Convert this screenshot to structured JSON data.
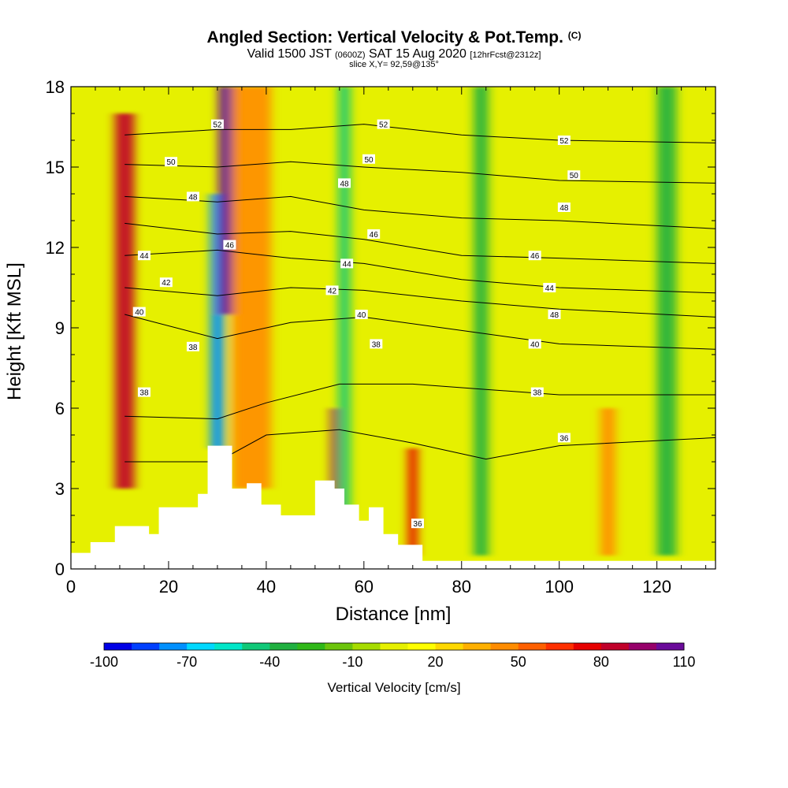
{
  "title": {
    "main": "Angled Section: Vertical Velocity & Pot.Temp.",
    "main_unit": "(C)",
    "valid_a": "Valid 1500 JST",
    "valid_b": "(0600Z)",
    "valid_c": "SAT 15 Aug 2020",
    "valid_d": "[12hrFcst@2312z]",
    "slice": "slice X,Y= 92,59@135°"
  },
  "chart_data": {
    "type": "heatmap",
    "xlabel": "Distance [nm]",
    "ylabel": "Height [Kft MSL]",
    "xlim": [
      0,
      132
    ],
    "ylim": [
      0,
      18
    ],
    "x_ticks": [
      0,
      20,
      40,
      60,
      80,
      100,
      120
    ],
    "y_ticks": [
      0,
      3,
      6,
      9,
      12,
      15,
      18
    ],
    "colorbar": {
      "title": "Vertical Velocity [cm/s]",
      "min": -100,
      "max": 110,
      "tick_labels": [
        "-100",
        "-70",
        "-40",
        "-10",
        "20",
        "50",
        "80",
        "110"
      ],
      "colors": [
        "#0000e6",
        "#0040ff",
        "#0090ff",
        "#00d8ff",
        "#00e6c8",
        "#10c878",
        "#20b040",
        "#30b818",
        "#6cc40c",
        "#a6dc00",
        "#e6f000",
        "#ffff00",
        "#ffd800",
        "#ffb000",
        "#ff8c00",
        "#ff6000",
        "#ff3000",
        "#e60000",
        "#c0002a",
        "#96006a",
        "#6a0a9a"
      ]
    },
    "terrain": [
      [
        0,
        0.6
      ],
      [
        4,
        1.0
      ],
      [
        9,
        1.6
      ],
      [
        14,
        1.6
      ],
      [
        16,
        1.3
      ],
      [
        18,
        2.3
      ],
      [
        23,
        2.3
      ],
      [
        26,
        2.8
      ],
      [
        28,
        4.6
      ],
      [
        31,
        4.6
      ],
      [
        33,
        3.0
      ],
      [
        36,
        3.2
      ],
      [
        39,
        2.4
      ],
      [
        43,
        2.0
      ],
      [
        47,
        2.0
      ],
      [
        50,
        3.3
      ],
      [
        54,
        3.0
      ],
      [
        56,
        2.4
      ],
      [
        59,
        1.8
      ],
      [
        61,
        2.3
      ],
      [
        64,
        1.3
      ],
      [
        67,
        0.9
      ],
      [
        72,
        0.3
      ],
      [
        132,
        0.3
      ]
    ],
    "vv_bands": [
      {
        "x": 11,
        "w": 2.0,
        "v": 80,
        "y0": 3.0,
        "y1": 17
      },
      {
        "x": 30,
        "w": 1.5,
        "v": -80,
        "y0": 4.5,
        "y1": 14
      },
      {
        "x": 32,
        "w": 1.8,
        "v": 100,
        "y0": 9.5,
        "y1": 18
      },
      {
        "x": 37,
        "w": 4.0,
        "v": 40,
        "y0": 3.0,
        "y1": 18
      },
      {
        "x": 54,
        "w": 0.8,
        "v": 90,
        "y0": 2.0,
        "y1": 6
      },
      {
        "x": 56,
        "w": 1.2,
        "v": -50,
        "y0": 2.0,
        "y1": 18
      },
      {
        "x": 70,
        "w": 1.0,
        "v": 70,
        "y0": 0.5,
        "y1": 4.5
      },
      {
        "x": 84,
        "w": 1.5,
        "v": -40,
        "y0": 0.5,
        "y1": 18
      },
      {
        "x": 110,
        "w": 1.5,
        "v": 40,
        "y0": 0.5,
        "y1": 6
      },
      {
        "x": 122,
        "w": 2.0,
        "v": -40,
        "y0": 0.5,
        "y1": 18
      }
    ],
    "isentropes": [
      {
        "label": "36",
        "pts": [
          [
            11,
            4.0
          ],
          [
            30,
            4.0
          ],
          [
            40,
            5.0
          ],
          [
            55,
            5.2
          ],
          [
            70,
            4.7
          ],
          [
            85,
            4.1
          ],
          [
            100,
            4.6
          ],
          [
            132,
            4.9
          ]
        ]
      },
      {
        "label": "38",
        "pts": [
          [
            11,
            5.7
          ],
          [
            30,
            5.6
          ],
          [
            40,
            6.2
          ],
          [
            55,
            6.9
          ],
          [
            70,
            6.9
          ],
          [
            85,
            6.7
          ],
          [
            100,
            6.5
          ],
          [
            132,
            6.5
          ]
        ]
      },
      {
        "label": "40",
        "pts": [
          [
            11,
            9.5
          ],
          [
            30,
            8.6
          ],
          [
            45,
            9.2
          ],
          [
            60,
            9.4
          ],
          [
            80,
            8.9
          ],
          [
            100,
            8.4
          ],
          [
            132,
            8.2
          ]
        ]
      },
      {
        "label": "42",
        "pts": [
          [
            11,
            10.5
          ],
          [
            30,
            10.2
          ],
          [
            45,
            10.5
          ],
          [
            60,
            10.4
          ],
          [
            80,
            10.0
          ],
          [
            100,
            9.7
          ],
          [
            132,
            9.4
          ]
        ]
      },
      {
        "label": "44",
        "pts": [
          [
            11,
            11.7
          ],
          [
            30,
            11.9
          ],
          [
            45,
            11.6
          ],
          [
            60,
            11.4
          ],
          [
            80,
            10.8
          ],
          [
            100,
            10.5
          ],
          [
            132,
            10.3
          ]
        ]
      },
      {
        "label": "46",
        "pts": [
          [
            11,
            12.9
          ],
          [
            30,
            12.5
          ],
          [
            45,
            12.6
          ],
          [
            60,
            12.3
          ],
          [
            80,
            11.7
          ],
          [
            100,
            11.6
          ],
          [
            132,
            11.4
          ]
        ]
      },
      {
        "label": "48",
        "pts": [
          [
            11,
            13.9
          ],
          [
            30,
            13.7
          ],
          [
            45,
            13.9
          ],
          [
            60,
            13.4
          ],
          [
            80,
            13.1
          ],
          [
            100,
            13.0
          ],
          [
            132,
            12.7
          ]
        ]
      },
      {
        "label": "50",
        "pts": [
          [
            11,
            15.1
          ],
          [
            30,
            15.0
          ],
          [
            45,
            15.2
          ],
          [
            60,
            15.0
          ],
          [
            80,
            14.8
          ],
          [
            100,
            14.5
          ],
          [
            132,
            14.4
          ]
        ]
      },
      {
        "label": "52",
        "pts": [
          [
            11,
            16.2
          ],
          [
            30,
            16.4
          ],
          [
            45,
            16.4
          ],
          [
            60,
            16.6
          ],
          [
            80,
            16.2
          ],
          [
            100,
            16.0
          ],
          [
            132,
            15.9
          ]
        ]
      }
    ],
    "contour_labels": [
      {
        "text": "52",
        "x": 30,
        "y": 16.6
      },
      {
        "text": "50",
        "x": 20.5,
        "y": 15.2
      },
      {
        "text": "48",
        "x": 25,
        "y": 13.9
      },
      {
        "text": "44",
        "x": 15,
        "y": 11.7
      },
      {
        "text": "42",
        "x": 19.5,
        "y": 10.7
      },
      {
        "text": "40",
        "x": 14,
        "y": 9.6
      },
      {
        "text": "38",
        "x": 25,
        "y": 8.3
      },
      {
        "text": "38",
        "x": 15,
        "y": 6.6
      },
      {
        "text": "46",
        "x": 32.5,
        "y": 12.1
      },
      {
        "text": "52",
        "x": 64,
        "y": 16.6
      },
      {
        "text": "50",
        "x": 61,
        "y": 15.3
      },
      {
        "text": "48",
        "x": 56,
        "y": 14.4
      },
      {
        "text": "46",
        "x": 62,
        "y": 12.5
      },
      {
        "text": "44",
        "x": 56.5,
        "y": 11.4
      },
      {
        "text": "42",
        "x": 53.5,
        "y": 10.4
      },
      {
        "text": "40",
        "x": 59.5,
        "y": 9.5
      },
      {
        "text": "38",
        "x": 62.5,
        "y": 8.4
      },
      {
        "text": "36",
        "x": 71,
        "y": 1.7
      },
      {
        "text": "52",
        "x": 101,
        "y": 16.0
      },
      {
        "text": "50",
        "x": 103,
        "y": 14.7
      },
      {
        "text": "48",
        "x": 101,
        "y": 13.5
      },
      {
        "text": "46",
        "x": 95,
        "y": 11.7
      },
      {
        "text": "44",
        "x": 98,
        "y": 10.5
      },
      {
        "text": "48",
        "x": 99,
        "y": 9.5
      },
      {
        "text": "40",
        "x": 95,
        "y": 8.4
      },
      {
        "text": "38",
        "x": 95.5,
        "y": 6.6
      },
      {
        "text": "36",
        "x": 101,
        "y": 4.9
      }
    ]
  }
}
